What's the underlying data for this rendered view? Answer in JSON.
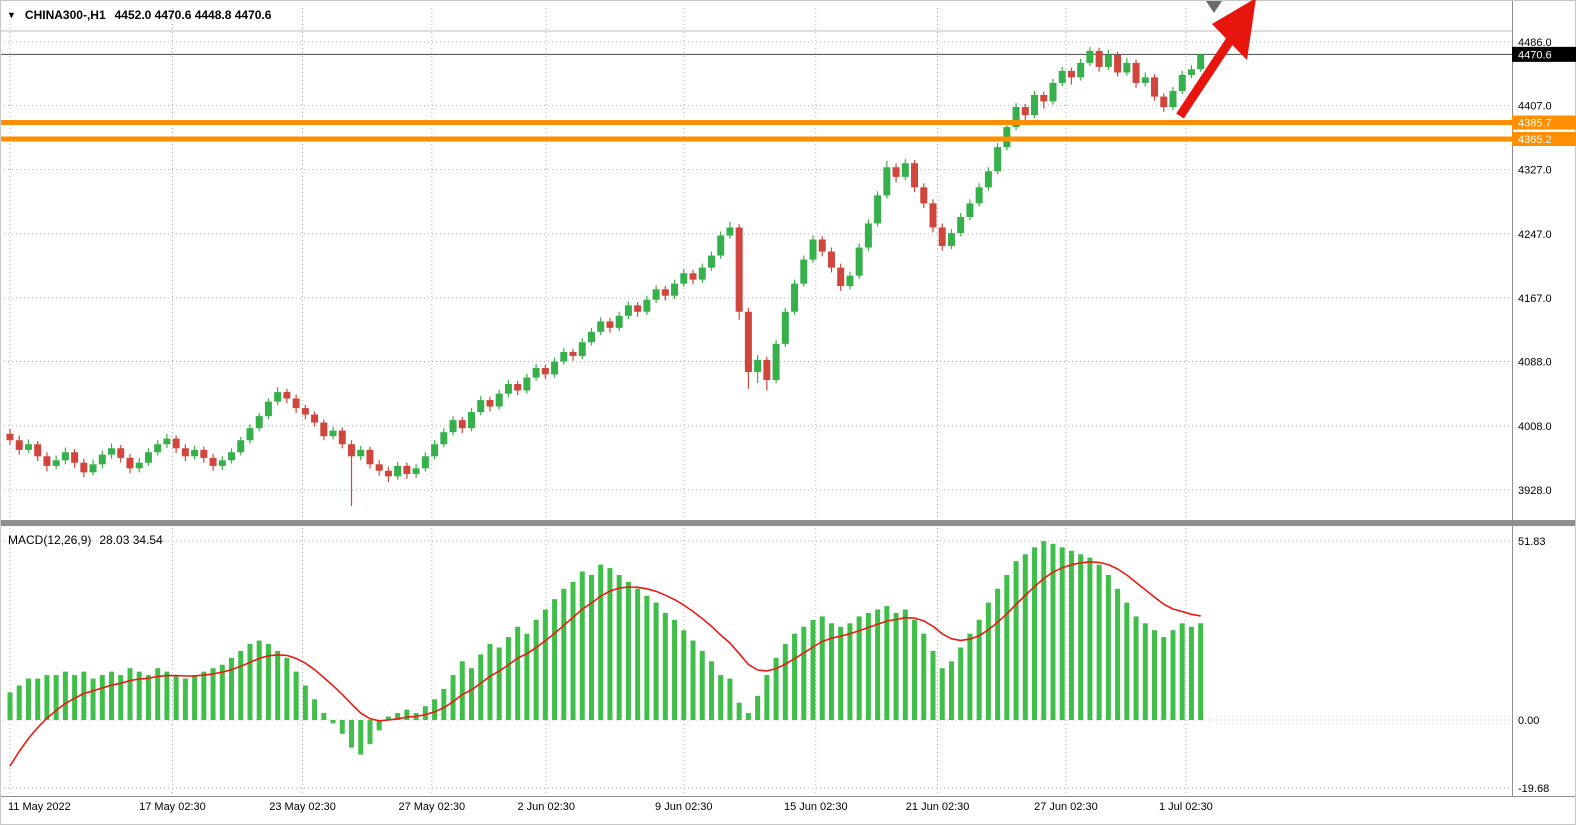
{
  "title": {
    "symbol": "CHINA300-,H1",
    "ohlc": "4452.0 4470.6 4448.8 4470.6"
  },
  "chart_data": {
    "type": "candlestick",
    "symbol": "CHINA300-,H1",
    "timeframe": "H1",
    "ohlc_last": {
      "open": 4452.0,
      "high": 4470.6,
      "low": 4448.8,
      "close": 4470.6
    },
    "current_price": 4470.6,
    "price_ticks": [
      4486.0,
      4407.0,
      4327.0,
      4247.0,
      4167.0,
      4088.0,
      4008.0,
      3928.0
    ],
    "hlines": [
      4385.7,
      4365.2
    ],
    "colors": {
      "up": "#35b04a",
      "down": "#d0453c",
      "hline": "#ff8e00",
      "arrow": "#e8150e",
      "hist": "#3fbf4a",
      "signal": "#ea1a12",
      "badge_current_bg": "#000000",
      "grid": "#b4b4b4"
    },
    "time_ticks": [
      {
        "label": "11 May 2022",
        "index": 0,
        "align": "left"
      },
      {
        "label": "17 May 02:30",
        "index": 17.6
      },
      {
        "label": "23 May 02:30",
        "index": 31.7
      },
      {
        "label": "27 May 02:30",
        "index": 45.7
      },
      {
        "label": "2 Jun 02:30",
        "index": 58.1
      },
      {
        "label": "9 Jun 02:30",
        "index": 73
      },
      {
        "label": "15 Jun 02:30",
        "index": 87.3
      },
      {
        "label": "21 Jun 02:30",
        "index": 100.5
      },
      {
        "label": "27 Jun 02:30",
        "index": 114.4
      },
      {
        "label": "1 Jul 02:30",
        "index": 127.4
      }
    ],
    "candles": [
      [
        3998,
        4004,
        3984,
        3990
      ],
      [
        3990,
        3996,
        3972,
        3978
      ],
      [
        3978,
        3991,
        3974,
        3985
      ],
      [
        3985,
        3989,
        3964,
        3970
      ],
      [
        3970,
        3975,
        3951,
        3958
      ],
      [
        3958,
        3971,
        3954,
        3965
      ],
      [
        3965,
        3981,
        3960,
        3975
      ],
      [
        3975,
        3979,
        3956,
        3962
      ],
      [
        3962,
        3967,
        3944,
        3950
      ],
      [
        3950,
        3966,
        3946,
        3960
      ],
      [
        3960,
        3977,
        3955,
        3972
      ],
      [
        3972,
        3986,
        3967,
        3980
      ],
      [
        3980,
        3984,
        3962,
        3968
      ],
      [
        3968,
        3973,
        3949,
        3955
      ],
      [
        3955,
        3968,
        3950,
        3962
      ],
      [
        3962,
        3980,
        3958,
        3975
      ],
      [
        3975,
        3990,
        3971,
        3985
      ],
      [
        3985,
        3998,
        3980,
        3992
      ],
      [
        3992,
        3996,
        3974,
        3980
      ],
      [
        3980,
        3985,
        3964,
        3970
      ],
      [
        3970,
        3983,
        3966,
        3978
      ],
      [
        3978,
        3982,
        3962,
        3968
      ],
      [
        3968,
        3973,
        3952,
        3958
      ],
      [
        3958,
        3970,
        3953,
        3965
      ],
      [
        3965,
        3980,
        3961,
        3975
      ],
      [
        3975,
        3994,
        3971,
        3990
      ],
      [
        3990,
        4010,
        3986,
        4005
      ],
      [
        4005,
        4024,
        4001,
        4020
      ],
      [
        4020,
        4042,
        4016,
        4038
      ],
      [
        4038,
        4056,
        4034,
        4050
      ],
      [
        4050,
        4054,
        4036,
        4042
      ],
      [
        4042,
        4047,
        4024,
        4030
      ],
      [
        4030,
        4034,
        4016,
        4022
      ],
      [
        4022,
        4026,
        4007,
        4012
      ],
      [
        4012,
        4016,
        3990,
        3995
      ],
      [
        3995,
        4007,
        3991,
        4002
      ],
      [
        4002,
        4006,
        3980,
        3985
      ],
      [
        3985,
        3990,
        3908,
        3970
      ],
      [
        3970,
        3983,
        3965,
        3978
      ],
      [
        3978,
        3982,
        3955,
        3960
      ],
      [
        3960,
        3965,
        3946,
        3952
      ],
      [
        3952,
        3957,
        3938,
        3945
      ],
      [
        3945,
        3963,
        3941,
        3958
      ],
      [
        3958,
        3962,
        3942,
        3948
      ],
      [
        3948,
        3960,
        3943,
        3955
      ],
      [
        3955,
        3975,
        3951,
        3970
      ],
      [
        3970,
        3990,
        3966,
        3985
      ],
      [
        3985,
        4005,
        3981,
        4000
      ],
      [
        4000,
        4020,
        3996,
        4015
      ],
      [
        4015,
        4019,
        3999,
        4005
      ],
      [
        4005,
        4030,
        4001,
        4025
      ],
      [
        4025,
        4045,
        4021,
        4040
      ],
      [
        4040,
        4044,
        4026,
        4032
      ],
      [
        4032,
        4053,
        4028,
        4048
      ],
      [
        4048,
        4065,
        4044,
        4060
      ],
      [
        4060,
        4064,
        4046,
        4052
      ],
      [
        4052,
        4073,
        4048,
        4068
      ],
      [
        4068,
        4085,
        4064,
        4080
      ],
      [
        4080,
        4084,
        4066,
        4072
      ],
      [
        4072,
        4093,
        4068,
        4088
      ],
      [
        4088,
        4105,
        4084,
        4100
      ],
      [
        4100,
        4104,
        4089,
        4095
      ],
      [
        4095,
        4117,
        4091,
        4112
      ],
      [
        4112,
        4130,
        4108,
        4125
      ],
      [
        4125,
        4143,
        4121,
        4138
      ],
      [
        4138,
        4142,
        4124,
        4130
      ],
      [
        4130,
        4150,
        4126,
        4145
      ],
      [
        4145,
        4163,
        4141,
        4158
      ],
      [
        4158,
        4162,
        4144,
        4150
      ],
      [
        4150,
        4170,
        4146,
        4165
      ],
      [
        4165,
        4183,
        4161,
        4178
      ],
      [
        4178,
        4182,
        4164,
        4170
      ],
      [
        4170,
        4190,
        4166,
        4185
      ],
      [
        4185,
        4203,
        4181,
        4198
      ],
      [
        4198,
        4202,
        4184,
        4190
      ],
      [
        4190,
        4210,
        4186,
        4205
      ],
      [
        4205,
        4225,
        4201,
        4220
      ],
      [
        4220,
        4250,
        4216,
        4245
      ],
      [
        4245,
        4262,
        4241,
        4255
      ],
      [
        4255,
        4259,
        4140,
        4150
      ],
      [
        4150,
        4155,
        4054,
        4075
      ],
      [
        4075,
        4096,
        4061,
        4090
      ],
      [
        4090,
        4094,
        4052,
        4065
      ],
      [
        4065,
        4115,
        4061,
        4110
      ],
      [
        4110,
        4155,
        4106,
        4150
      ],
      [
        4150,
        4190,
        4146,
        4185
      ],
      [
        4185,
        4220,
        4181,
        4215
      ],
      [
        4215,
        4245,
        4211,
        4240
      ],
      [
        4240,
        4244,
        4219,
        4225
      ],
      [
        4225,
        4230,
        4199,
        4205
      ],
      [
        4205,
        4210,
        4176,
        4182
      ],
      [
        4182,
        4200,
        4178,
        4195
      ],
      [
        4195,
        4235,
        4191,
        4230
      ],
      [
        4230,
        4265,
        4226,
        4260
      ],
      [
        4260,
        4300,
        4256,
        4295
      ],
      [
        4295,
        4338,
        4291,
        4330
      ],
      [
        4330,
        4335,
        4311,
        4318
      ],
      [
        4318,
        4340,
        4314,
        4335
      ],
      [
        4335,
        4339,
        4299,
        4305
      ],
      [
        4305,
        4310,
        4279,
        4285
      ],
      [
        4285,
        4290,
        4249,
        4255
      ],
      [
        4255,
        4260,
        4226,
        4232
      ],
      [
        4232,
        4253,
        4228,
        4248
      ],
      [
        4248,
        4273,
        4244,
        4268
      ],
      [
        4268,
        4290,
        4264,
        4285
      ],
      [
        4285,
        4310,
        4281,
        4305
      ],
      [
        4305,
        4330,
        4301,
        4325
      ],
      [
        4325,
        4360,
        4321,
        4355
      ],
      [
        4355,
        4385,
        4351,
        4380
      ],
      [
        4380,
        4410,
        4376,
        4405
      ],
      [
        4405,
        4409,
        4387,
        4395
      ],
      [
        4395,
        4425,
        4391,
        4420
      ],
      [
        4420,
        4424,
        4403,
        4412
      ],
      [
        4412,
        4440,
        4408,
        4435
      ],
      [
        4435,
        4455,
        4431,
        4450
      ],
      [
        4450,
        4454,
        4433,
        4442
      ],
      [
        4442,
        4465,
        4438,
        4460
      ],
      [
        4460,
        4480,
        4456,
        4475
      ],
      [
        4475,
        4479,
        4449,
        4455
      ],
      [
        4455,
        4476,
        4451,
        4470
      ],
      [
        4470,
        4474,
        4443,
        4448
      ],
      [
        4448,
        4466,
        4444,
        4460
      ],
      [
        4460,
        4464,
        4429,
        4435
      ],
      [
        4435,
        4448,
        4431,
        4442
      ],
      [
        4442,
        4446,
        4413,
        4418
      ],
      [
        4418,
        4422,
        4399,
        4405
      ],
      [
        4405,
        4430,
        4401,
        4425
      ],
      [
        4425,
        4450,
        4421,
        4445
      ],
      [
        4445,
        4457,
        4441,
        4452
      ],
      [
        4452,
        4470.6,
        4448.8,
        4470.6
      ]
    ],
    "macd": {
      "label": "MACD(12,26,9)",
      "values_text": "28.03 34.54",
      "macd_value": 28.03,
      "signal_value": 34.54,
      "y_ticks": [
        51.83,
        0,
        -19.68
      ],
      "signal_alpha": 0.18,
      "signal_seed": -18,
      "histogram": [
        8,
        10,
        12,
        12,
        13,
        13,
        14,
        13,
        14,
        12,
        13,
        14,
        13,
        15,
        14,
        13,
        15,
        14,
        13,
        12,
        13,
        14,
        15,
        16,
        18,
        20,
        22,
        23,
        22,
        20,
        18,
        14,
        10,
        6,
        2,
        -1,
        -4,
        -8,
        -10,
        -7,
        -3,
        1,
        2,
        3,
        2,
        4,
        6,
        9,
        13,
        17,
        15,
        19,
        22,
        21,
        24,
        27,
        25,
        29,
        32,
        35,
        38,
        40,
        43,
        42,
        45,
        44,
        42,
        40,
        38,
        36,
        34,
        31,
        29,
        26,
        23,
        20,
        17,
        13,
        12,
        5,
        2,
        7,
        13,
        18,
        22,
        25,
        27,
        29,
        30,
        28,
        27,
        28,
        30,
        31,
        32,
        33,
        31,
        32,
        29,
        25,
        20,
        15,
        17,
        21,
        25,
        29,
        34,
        38,
        42,
        46,
        48,
        50,
        51.8,
        51,
        50,
        49,
        48,
        47,
        45,
        42,
        38,
        34,
        30,
        28,
        26,
        24,
        26,
        28,
        27,
        28.03
      ]
    }
  }
}
